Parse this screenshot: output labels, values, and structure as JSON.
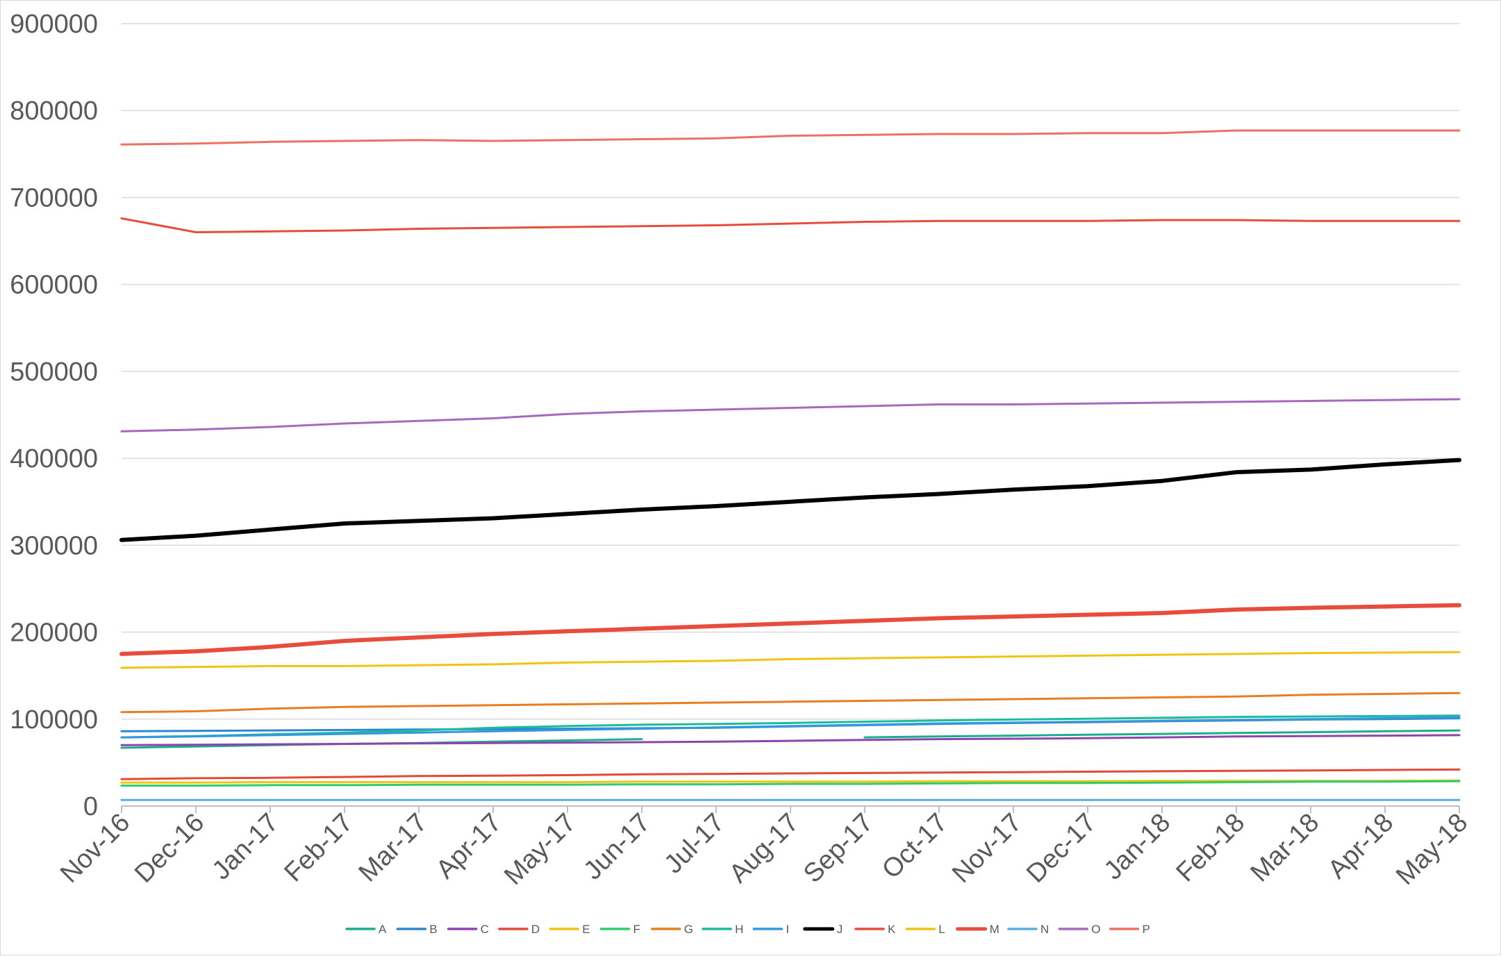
{
  "chart_data": {
    "type": "line",
    "title": "",
    "xlabel": "",
    "ylabel": "",
    "x": [
      "Nov-16",
      "Dec-16",
      "Jan-17",
      "Feb-17",
      "Mar-17",
      "Apr-17",
      "May-17",
      "Jun-17",
      "Jul-17",
      "Aug-17",
      "Sep-17",
      "Oct-17",
      "Nov-17",
      "Dec-17",
      "Jan-18",
      "Feb-18",
      "Mar-18",
      "Apr-18",
      "May-18"
    ],
    "ylim": [
      0,
      900000
    ],
    "yticks": [
      "0",
      "100000",
      "200000",
      "300000",
      "400000",
      "500000",
      "600000",
      "700000",
      "800000",
      "900000"
    ],
    "ytick_values": [
      0,
      100000,
      200000,
      300000,
      400000,
      500000,
      600000,
      700000,
      800000,
      900000
    ],
    "grid": "horizontal",
    "legend_position": "bottom",
    "series": [
      {
        "name": "A",
        "color": "#1aaf8b",
        "width": 3,
        "values": [
          67000,
          68500,
          70000,
          71500,
          72500,
          74000,
          75500,
          77000,
          null,
          null,
          79000,
          80000,
          81000,
          82000,
          83000,
          84000,
          85000,
          86000,
          87000
        ]
      },
      {
        "name": "B",
        "color": "#2e86d0",
        "width": 3,
        "values": [
          86000,
          86500,
          87000,
          87500,
          88000,
          88500,
          89000,
          89500,
          90000,
          91500,
          93000,
          94500,
          95500,
          96500,
          97500,
          98500,
          99500,
          100000,
          101000
        ]
      },
      {
        "name": "C",
        "color": "#8e44ad",
        "width": 3,
        "values": [
          70000,
          70500,
          71000,
          71500,
          72000,
          72500,
          73000,
          73500,
          74000,
          75000,
          76000,
          77000,
          77500,
          78000,
          79000,
          80000,
          80500,
          81000,
          81500
        ]
      },
      {
        "name": "D",
        "color": "#e04a39",
        "width": 3,
        "values": [
          31000,
          32000,
          32500,
          33500,
          34500,
          35000,
          35500,
          36500,
          37000,
          37500,
          38000,
          38500,
          39000,
          39500,
          40000,
          40500,
          41000,
          41500,
          42000
        ]
      },
      {
        "name": "E",
        "color": "#f1c40f",
        "width": 3,
        "values": [
          27000,
          27000,
          27500,
          27500,
          27500,
          27500,
          27500,
          28000,
          28000,
          28000,
          28000,
          28500,
          28500,
          28500,
          29000,
          29000,
          29000,
          29000,
          29500
        ]
      },
      {
        "name": "F",
        "color": "#2ecc71",
        "width": 3,
        "values": [
          23500,
          23500,
          24000,
          24000,
          24500,
          24500,
          24500,
          25000,
          25000,
          25500,
          25500,
          26000,
          26500,
          26500,
          27000,
          27500,
          28000,
          28000,
          28500
        ]
      },
      {
        "name": "G",
        "color": "#e67e22",
        "width": 3,
        "values": [
          108000,
          109000,
          112000,
          114000,
          115000,
          116000,
          117000,
          118000,
          119000,
          120000,
          121000,
          122000,
          123000,
          124000,
          125000,
          126000,
          128000,
          129000,
          130000
        ]
      },
      {
        "name": "H",
        "color": "#1abc9c",
        "width": 3,
        "values": [
          79000,
          80500,
          82500,
          84500,
          87000,
          90000,
          92000,
          93500,
          94500,
          95500,
          97000,
          98500,
          99500,
          100500,
          101500,
          102500,
          103000,
          103500,
          104000
        ]
      },
      {
        "name": "I",
        "color": "#3498db",
        "width": 3,
        "values": [
          79000,
          80000,
          81500,
          83000,
          84500,
          86000,
          87500,
          89000,
          90500,
          92000,
          93500,
          95000,
          96000,
          97000,
          98000,
          99000,
          100000,
          101000,
          102000
        ]
      },
      {
        "name": "J",
        "color": "#000000",
        "width": 6,
        "values": [
          306000,
          311000,
          318000,
          325000,
          328000,
          331000,
          336000,
          341000,
          345000,
          350000,
          355000,
          359000,
          364000,
          368000,
          374000,
          384000,
          387000,
          393000,
          398000
        ]
      },
      {
        "name": "K",
        "color": "#e74c3c",
        "width": 3,
        "values": [
          676000,
          660000,
          661000,
          662000,
          664000,
          665000,
          666000,
          667000,
          668000,
          670000,
          672000,
          673000,
          673000,
          673000,
          674000,
          674000,
          673000,
          673000,
          673000
        ]
      },
      {
        "name": "L",
        "color": "#f1c40f",
        "width": 3,
        "values": [
          159000,
          160000,
          161000,
          161000,
          162000,
          163000,
          165000,
          166000,
          167000,
          169000,
          170000,
          171000,
          172000,
          173000,
          174000,
          175000,
          176000,
          176500,
          177000
        ]
      },
      {
        "name": "M",
        "color": "#e74c3c",
        "width": 6,
        "values": [
          175000,
          178000,
          183000,
          190000,
          194000,
          198000,
          201000,
          204000,
          207000,
          210000,
          213000,
          216000,
          218000,
          220000,
          222000,
          226000,
          228000,
          229500,
          231000
        ]
      },
      {
        "name": "N",
        "color": "#5dade2",
        "width": 3,
        "values": [
          7000,
          7000,
          7000,
          7000,
          7000,
          7000,
          7000,
          7000,
          7000,
          7000,
          7000,
          7000,
          7000,
          7000,
          7000,
          7000,
          7000,
          7000,
          7000
        ]
      },
      {
        "name": "O",
        "color": "#a569bd",
        "width": 3,
        "values": [
          431000,
          433000,
          436000,
          440000,
          443000,
          446000,
          451000,
          454000,
          456000,
          458000,
          460000,
          462000,
          462000,
          463000,
          464000,
          465000,
          466000,
          467000,
          468000
        ]
      },
      {
        "name": "P",
        "color": "#ec7063",
        "width": 3,
        "values": [
          761000,
          762000,
          764000,
          765000,
          766000,
          765000,
          766000,
          767000,
          768000,
          771000,
          772000,
          773000,
          773000,
          774000,
          774000,
          777000,
          777000,
          777000,
          777000
        ]
      }
    ]
  }
}
